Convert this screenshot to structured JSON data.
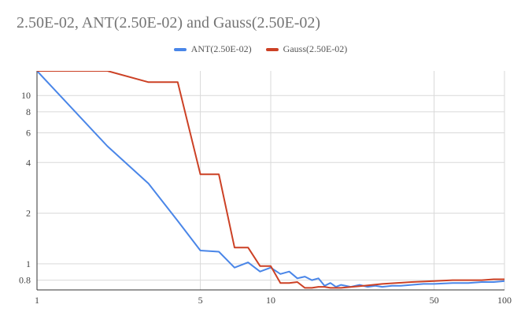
{
  "chart_data": {
    "type": "line",
    "title": "2.50E-02, ANT(2.50E-02) and Gauss(2.50E-02)",
    "x_scale": "log",
    "y_scale": "log",
    "xlim": [
      1,
      100
    ],
    "ylim": [
      0.7,
      14
    ],
    "x_ticks": [
      1,
      5,
      10,
      50,
      100
    ],
    "y_ticks": [
      0.8,
      1,
      2,
      4,
      6,
      8,
      10
    ],
    "grid": true,
    "legend_position": "top",
    "series": [
      {
        "name": "ANT(2.50E-02)",
        "color": "#4a86e8",
        "x": [
          1,
          2,
          3,
          4,
          5,
          6,
          7,
          8,
          9,
          10,
          11,
          12,
          13,
          14,
          15,
          16,
          17,
          18,
          19,
          20,
          22,
          24,
          26,
          28,
          30,
          33,
          36,
          40,
          45,
          50,
          60,
          70,
          80,
          90,
          100
        ],
        "y": [
          14,
          5,
          3,
          1.8,
          1.2,
          1.18,
          0.95,
          1.02,
          0.9,
          0.95,
          0.87,
          0.9,
          0.82,
          0.84,
          0.8,
          0.82,
          0.74,
          0.77,
          0.73,
          0.75,
          0.73,
          0.75,
          0.73,
          0.74,
          0.73,
          0.74,
          0.74,
          0.75,
          0.76,
          0.76,
          0.77,
          0.77,
          0.78,
          0.78,
          0.79
        ]
      },
      {
        "name": "Gauss(2.50E-02)",
        "color": "#cc4125",
        "x": [
          1,
          2,
          3,
          4,
          5,
          6,
          7,
          8,
          9,
          10,
          11,
          12,
          13,
          14,
          15,
          16,
          17,
          18,
          20,
          25,
          30,
          40,
          50,
          60,
          70,
          80,
          90,
          100
        ],
        "y": [
          14,
          14,
          12,
          12,
          3.4,
          3.4,
          1.25,
          1.25,
          0.97,
          0.97,
          0.77,
          0.77,
          0.78,
          0.72,
          0.72,
          0.73,
          0.73,
          0.72,
          0.72,
          0.74,
          0.76,
          0.78,
          0.79,
          0.8,
          0.8,
          0.8,
          0.81,
          0.81
        ]
      }
    ]
  }
}
